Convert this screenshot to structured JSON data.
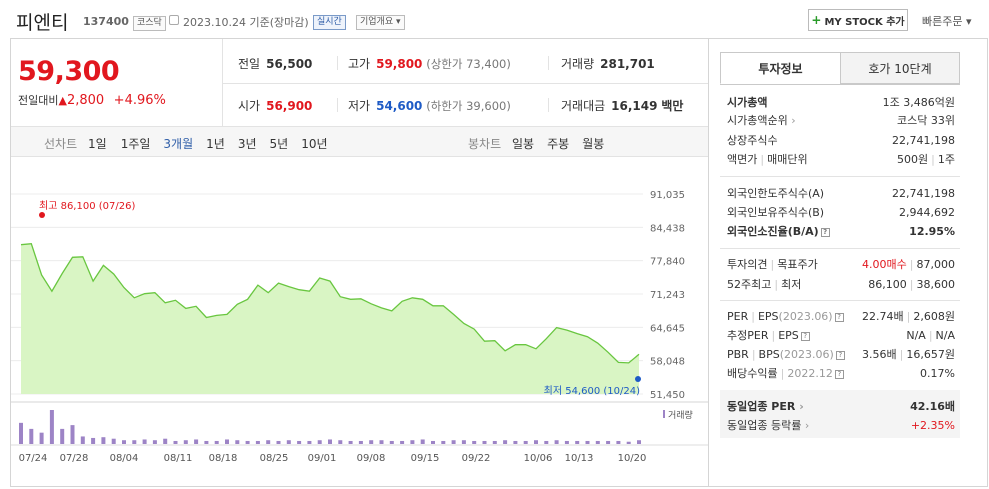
{
  "header": {
    "title": "피엔티",
    "code": "137400",
    "market_badge": "코스닥",
    "date_text": "2023.10.24 기준(장마감)",
    "realtime_badge": "실시간",
    "company_btn": "기업개요 ▾",
    "mystock": "MY STOCK 추가",
    "quick_order": "빠른주문 ▾"
  },
  "price": {
    "current": "59,300",
    "diff_label": "전일대비",
    "diff_arrow": "▲",
    "diff_value": "2,800",
    "diff_pct": "+4.96%"
  },
  "stats": {
    "prev_label": "전일",
    "prev_value": "56,500",
    "open_label": "시가",
    "open_value": "56,900",
    "high_label": "고가",
    "high_value": "59,800",
    "upper_limit": "(상한가 73,400)",
    "low_label": "저가",
    "low_value": "54,600",
    "lower_limit": "(하한가 39,600)",
    "volume_label": "거래량",
    "volume_value": "281,701",
    "amount_label": "거래대금",
    "amount_value": "16,149",
    "amount_unit": "백만"
  },
  "chart_tabs": {
    "line_label": "선차트",
    "periods": [
      "1일",
      "1주일",
      "3개월",
      "1년",
      "3년",
      "5년",
      "10년"
    ],
    "selected": "3개월",
    "candle_label": "봉차트",
    "candle_periods": [
      "일봉",
      "주봉",
      "월봉"
    ]
  },
  "chart_data": {
    "type": "area",
    "y_ticks": [
      "91,035",
      "84,438",
      "77,840",
      "71,243",
      "64,645",
      "58,048",
      "51,450"
    ],
    "ylim": [
      51450,
      91035
    ],
    "x_ticks": [
      "07/24",
      "07/28",
      "08/04",
      "08/11",
      "08/18",
      "08/25",
      "09/01",
      "09/08",
      "09/15",
      "09/22",
      "10/06",
      "10/13",
      "10/20"
    ],
    "high_label": "최고",
    "high_value": "86,100 (07/26)",
    "low_label": "최저",
    "low_value": "54,600 (10/24)",
    "volume_legend": "거래량",
    "series": [
      {
        "values": [
          81000,
          81200,
          75000,
          71800,
          75300,
          78500,
          78600,
          73800,
          76900,
          75200,
          72500,
          70500,
          71300,
          71500,
          69500,
          70000,
          68400,
          68800,
          66600,
          67000,
          67200,
          69200,
          70200,
          73000,
          71500,
          73400,
          72700,
          72100,
          71800,
          74400,
          73800,
          70700,
          70200,
          70300,
          69300,
          68500,
          67900,
          69800,
          70500,
          70200,
          68900,
          68900,
          67200,
          65400,
          64300,
          61900,
          62000,
          60000,
          61200,
          61200,
          60400,
          62400,
          64600,
          64100,
          63400,
          62800,
          61500,
          59700,
          57700,
          57600,
          59300
        ]
      }
    ],
    "volume": [
      28,
      20,
      15,
      45,
      20,
      25,
      10,
      8,
      9,
      7,
      5,
      5,
      6,
      5,
      7,
      4,
      5,
      6,
      4,
      4,
      6,
      5,
      4,
      4,
      5,
      4,
      5,
      4,
      4,
      5,
      6,
      5,
      4,
      4,
      5,
      5,
      4,
      4,
      5,
      6,
      4,
      4,
      5,
      5,
      4,
      4,
      4,
      5,
      4,
      4,
      5,
      4,
      5,
      4,
      4,
      4,
      4,
      4,
      4,
      3,
      5
    ]
  },
  "right": {
    "tab_active": "투자정보",
    "tab_other": "호가 10단계",
    "market_cap_label": "시가총액",
    "market_cap": "1조 3,486억원",
    "rank_label": "시가총액순위",
    "rank": "코스닥 33위",
    "shares_label": "상장주식수",
    "shares": "22,741,198",
    "face_label": "액면가",
    "unit_label": "매매단위",
    "face_value": "500원",
    "unit_value": "1주",
    "foreign_limit_label": "외국인한도주식수(A)",
    "foreign_limit": "22,741,198",
    "foreign_hold_label": "외국인보유주식수(B)",
    "foreign_hold": "2,944,692",
    "foreign_ratio_label": "외국인소진율(B/A)",
    "foreign_ratio": "12.95%",
    "opinion_label": "투자의견",
    "target_label": "목표주가",
    "opinion_value": "4.00매수",
    "target_value": "87,000",
    "week52_label": "52주최고",
    "week52_low_label": "최저",
    "week52_high": "86,100",
    "week52_low": "38,600",
    "per_label": "PER",
    "eps_label": "EPS",
    "eps_period": "(2023.06)",
    "per_value": "22.74배",
    "eps_value": "2,608원",
    "est_per_label": "추정PER",
    "est_eps_label": "EPS",
    "est_per_value": "N/A",
    "est_eps_value": "N/A",
    "pbr_label": "PBR",
    "bps_label": "BPS",
    "bps_period": "(2023.06)",
    "pbr_value": "3.56배",
    "bps_value": "16,657원",
    "div_label": "배당수익률",
    "div_period": "2022.12",
    "div_value": "0.17%",
    "ind_per_label": "동일업종 PER",
    "ind_per": "42.16배",
    "ind_rate_label": "동일업종 등락률",
    "ind_rate": "+2.35%"
  }
}
